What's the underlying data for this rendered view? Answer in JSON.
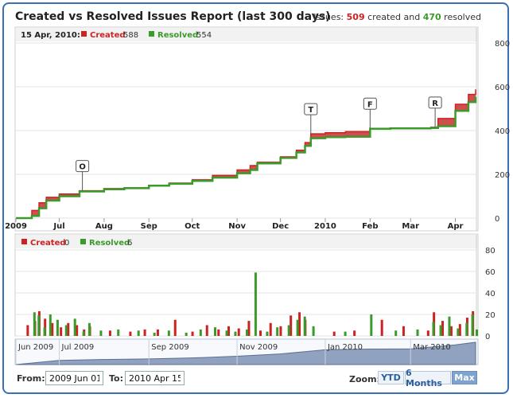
{
  "header": {
    "title": "Created vs Resolved Issues Report (last 300 days)",
    "summary_prefix": "Issues:",
    "summary_created": "509",
    "summary_mid": "created and",
    "summary_resolved": "470",
    "summary_suffix": "resolved"
  },
  "colors": {
    "created": "#cc2222",
    "resolved": "#3a9a2a",
    "frame": "#3b6fb6",
    "navigator": "#7f93b5"
  },
  "main_legend": {
    "date": "15 Apr, 2010:",
    "created_label": "Created",
    "created_value": "588",
    "resolved_label": "Resolved",
    "resolved_value": "554"
  },
  "volume_legend": {
    "created_label": "Created",
    "created_value": "0",
    "resolved_label": "Resolved",
    "resolved_value": "6"
  },
  "range": {
    "from_label": "From:",
    "from_value": "2009 Jun 01",
    "to_label": "To:",
    "to_value": "2010 Apr 15"
  },
  "zoom": {
    "label": "Zoom:",
    "options": [
      "YTD",
      "6 Months",
      "Max"
    ],
    "selected": "Max"
  },
  "chart_data": [
    {
      "type": "area",
      "title": "Created vs Resolved Issues Report (last 300 days)",
      "y_ticks": [
        0,
        200,
        400,
        600,
        800
      ],
      "ylim": [
        0,
        800
      ],
      "x_tick_labels": [
        "2009",
        "Jul",
        "Aug",
        "Sep",
        "Oct",
        "Nov",
        "Dec",
        "2010",
        "Feb",
        "Mar",
        "Apr"
      ],
      "x_tick_dates": [
        "2009-06-01",
        "2009-07-01",
        "2009-08-01",
        "2009-09-01",
        "2009-10-01",
        "2009-11-01",
        "2009-12-01",
        "2010-01-01",
        "2010-02-01",
        "2010-03-01",
        "2010-04-01"
      ],
      "x_range": [
        "2009-06-01",
        "2010-04-15"
      ],
      "series": [
        {
          "name": "Created",
          "color": "#cc2222",
          "x": [
            "2009-06-01",
            "2009-06-08",
            "2009-06-12",
            "2009-06-17",
            "2009-06-22",
            "2009-07-01",
            "2009-07-15",
            "2009-08-01",
            "2009-08-15",
            "2009-09-01",
            "2009-09-15",
            "2009-10-01",
            "2009-10-15",
            "2009-11-01",
            "2009-11-10",
            "2009-11-15",
            "2009-12-01",
            "2009-12-12",
            "2009-12-18",
            "2009-12-22",
            "2010-01-01",
            "2010-01-15",
            "2010-02-01",
            "2010-02-15",
            "2010-03-01",
            "2010-03-15",
            "2010-03-20",
            "2010-04-01",
            "2010-04-10",
            "2010-04-15"
          ],
          "values": [
            0,
            0,
            35,
            70,
            95,
            110,
            125,
            135,
            138,
            150,
            160,
            175,
            195,
            220,
            240,
            255,
            280,
            310,
            345,
            385,
            390,
            395,
            410,
            412,
            412,
            415,
            455,
            520,
            565,
            588
          ]
        },
        {
          "name": "Resolved",
          "color": "#3a9a2a",
          "x": [
            "2009-06-01",
            "2009-06-08",
            "2009-06-12",
            "2009-06-17",
            "2009-06-22",
            "2009-07-01",
            "2009-07-15",
            "2009-08-01",
            "2009-08-15",
            "2009-09-01",
            "2009-09-15",
            "2009-10-01",
            "2009-10-15",
            "2009-11-01",
            "2009-11-10",
            "2009-11-15",
            "2009-12-01",
            "2009-12-12",
            "2009-12-18",
            "2009-12-22",
            "2010-01-01",
            "2010-01-15",
            "2010-02-01",
            "2010-02-15",
            "2010-03-01",
            "2010-03-15",
            "2010-03-20",
            "2010-04-01",
            "2010-04-10",
            "2010-04-15"
          ],
          "values": [
            0,
            0,
            10,
            45,
            80,
            100,
            122,
            132,
            137,
            148,
            157,
            170,
            185,
            205,
            220,
            250,
            275,
            300,
            330,
            365,
            370,
            372,
            408,
            410,
            410,
            412,
            420,
            490,
            530,
            554
          ]
        }
      ],
      "flags": [
        {
          "label": "O",
          "x": "2009-07-17"
        },
        {
          "label": "T",
          "x": "2009-12-22"
        },
        {
          "label": "F",
          "x": "2010-02-01"
        },
        {
          "label": "R",
          "x": "2010-03-18"
        }
      ]
    },
    {
      "type": "bar",
      "y_ticks": [
        0,
        20,
        40,
        60,
        80
      ],
      "ylim": [
        0,
        80
      ],
      "series": [
        {
          "name": "Created",
          "color": "#cc2222",
          "x": [
            "2009-06-10",
            "2009-06-15",
            "2009-06-18",
            "2009-06-22",
            "2009-06-27",
            "2009-07-03",
            "2009-07-08",
            "2009-07-14",
            "2009-07-19",
            "2009-07-23",
            "2009-08-06",
            "2009-08-20",
            "2009-08-30",
            "2009-09-08",
            "2009-09-20",
            "2009-10-02",
            "2009-10-12",
            "2009-10-20",
            "2009-10-27",
            "2009-11-03",
            "2009-11-10",
            "2009-11-18",
            "2009-11-25",
            "2009-12-02",
            "2009-12-09",
            "2009-12-15",
            "2009-12-19",
            "2010-01-08",
            "2010-01-22",
            "2010-02-10",
            "2010-02-25",
            "2010-03-14",
            "2010-03-18",
            "2010-03-24",
            "2010-03-30",
            "2010-04-05",
            "2010-04-10",
            "2010-04-14"
          ],
          "values": [
            10,
            14,
            23,
            16,
            12,
            8,
            12,
            10,
            6,
            9,
            5,
            4,
            6,
            6,
            15,
            4,
            10,
            6,
            9,
            7,
            14,
            5,
            12,
            9,
            19,
            22,
            15,
            4,
            5,
            15,
            9,
            5,
            22,
            14,
            9,
            11,
            17,
            23
          ]
        },
        {
          "name": "Resolved",
          "color": "#3a9a2a",
          "x": [
            "2009-06-13",
            "2009-06-16",
            "2009-06-20",
            "2009-06-24",
            "2009-06-29",
            "2009-07-05",
            "2009-07-11",
            "2009-07-17",
            "2009-07-21",
            "2009-07-29",
            "2009-08-10",
            "2009-08-24",
            "2009-09-04",
            "2009-09-14",
            "2009-09-26",
            "2009-10-06",
            "2009-10-16",
            "2009-10-24",
            "2009-10-30",
            "2009-11-07",
            "2009-11-13",
            "2009-11-21",
            "2009-11-28",
            "2009-12-06",
            "2009-12-12",
            "2009-12-17",
            "2009-12-23",
            "2010-01-14",
            "2010-02-01",
            "2010-02-18",
            "2010-03-05",
            "2010-03-16",
            "2010-03-21",
            "2010-03-27",
            "2010-04-02",
            "2010-04-08",
            "2010-04-12",
            "2010-04-15"
          ],
          "values": [
            22,
            19,
            8,
            20,
            15,
            10,
            16,
            4,
            12,
            5,
            6,
            5,
            3,
            5,
            3,
            6,
            8,
            5,
            4,
            6,
            59,
            4,
            8,
            10,
            15,
            18,
            9,
            4,
            20,
            5,
            6,
            13,
            10,
            18,
            7,
            12,
            20,
            6
          ]
        }
      ]
    },
    {
      "type": "area",
      "x_tick_labels": [
        "Jun 2009",
        "Jul 2009",
        "Sep 2009",
        "Nov 2009",
        "Jan 2010",
        "Mar 2010"
      ],
      "x_tick_dates": [
        "2009-06-01",
        "2009-07-01",
        "2009-09-01",
        "2009-11-01",
        "2010-01-01",
        "2010-03-01"
      ],
      "x": [
        "2009-06-01",
        "2009-07-01",
        "2009-08-01",
        "2009-09-01",
        "2009-10-01",
        "2009-11-01",
        "2009-12-01",
        "2010-01-01",
        "2010-02-01",
        "2010-03-01",
        "2010-04-01",
        "2010-04-15"
      ],
      "values": [
        0,
        110,
        135,
        150,
        175,
        220,
        280,
        390,
        410,
        412,
        520,
        588
      ]
    }
  ]
}
